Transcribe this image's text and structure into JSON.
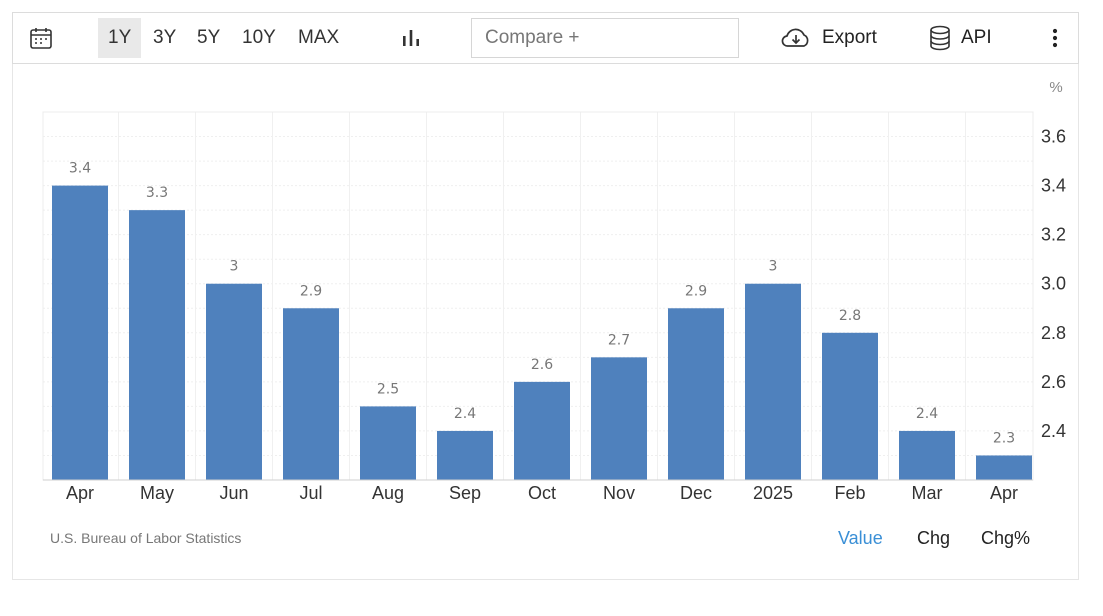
{
  "toolbar": {
    "ranges": [
      "1Y",
      "3Y",
      "5Y",
      "10Y",
      "MAX"
    ],
    "active_range": "1Y",
    "compare_placeholder": "Compare +",
    "export_label": "Export",
    "api_label": "API",
    "icons": {
      "calendar": "calendar-icon",
      "chart_type": "bar-chart-icon",
      "export": "cloud-download-icon",
      "api": "database-icon",
      "more": "kebab-menu-icon"
    }
  },
  "chart_data": {
    "type": "bar",
    "categories": [
      "Apr",
      "May",
      "Jun",
      "Jul",
      "Aug",
      "Sep",
      "Oct",
      "Nov",
      "Dec",
      "2025",
      "Feb",
      "Mar",
      "Apr"
    ],
    "values": [
      3.4,
      3.3,
      3.0,
      2.9,
      2.5,
      2.4,
      2.6,
      2.7,
      2.9,
      3.0,
      2.8,
      2.4,
      2.3
    ],
    "data_labels": [
      "3.4",
      "3.3",
      "3",
      "2.9",
      "2.5",
      "2.4",
      "2.6",
      "2.7",
      "2.9",
      "3",
      "2.8",
      "2.4",
      "2.3"
    ],
    "unit": "%",
    "y_ticks": [
      "2.4",
      "2.6",
      "2.8",
      "3.0",
      "3.2",
      "3.4",
      "3.6"
    ],
    "ylim": [
      2.2,
      3.7
    ],
    "y_axis_side": "right",
    "grid": true,
    "bar_color": "#4f81bd",
    "title": "",
    "xlabel": "",
    "ylabel": ""
  },
  "footer": {
    "source": "U.S. Bureau of Labor Statistics",
    "tabs": [
      "Value",
      "Chg",
      "Chg%"
    ],
    "active_tab": "Value"
  },
  "colors": {
    "accent": "#3a8fd6",
    "bar": "#4f81bd"
  }
}
